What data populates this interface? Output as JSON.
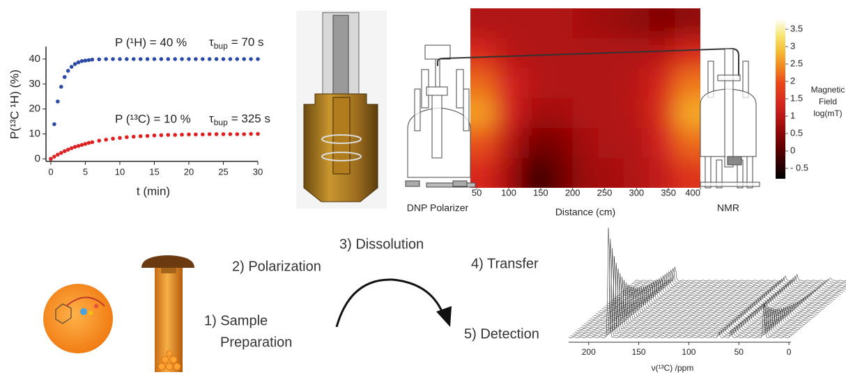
{
  "chart_data": [
    {
      "type": "scatter",
      "x_label": "t (min)",
      "y_label": "P(¹³C ¹H) (%)",
      "x": [
        0,
        0.5,
        1,
        1.5,
        2,
        2.5,
        3,
        3.5,
        4,
        4.5,
        5,
        5.5,
        6,
        7,
        8,
        9,
        10,
        11,
        12,
        13,
        14,
        15,
        16,
        17,
        18,
        19,
        20,
        21,
        22,
        23,
        24,
        25,
        26,
        27,
        28,
        29,
        30
      ],
      "series": [
        {
          "color": "#2b4aa8",
          "values": [
            0,
            13.9,
            23.0,
            28.9,
            32.8,
            35.3,
            36.9,
            38.0,
            38.7,
            39.2,
            39.4,
            39.6,
            39.8,
            39.9,
            40,
            40,
            40,
            40,
            40,
            40,
            40,
            40,
            40,
            40,
            40,
            40,
            40,
            40,
            40,
            40,
            40,
            40,
            40,
            40,
            40,
            40,
            40
          ]
        },
        {
          "color": "#e02020",
          "values": [
            0,
            0.9,
            1.7,
            2.4,
            3.1,
            3.7,
            4.3,
            4.8,
            5.2,
            5.6,
            6.0,
            6.4,
            6.7,
            7.3,
            7.7,
            8.1,
            8.4,
            8.7,
            8.9,
            9.1,
            9.2,
            9.4,
            9.5,
            9.6,
            9.6,
            9.7,
            9.8,
            9.8,
            9.8,
            9.9,
            9.9,
            9.9,
            9.9,
            9.9,
            9.9,
            10,
            10
          ]
        }
      ],
      "annotations": [
        {
          "text": "P (¹H) = 40 %",
          "tau": "τ",
          "subscript": "bup",
          "tau_text": "= 70 s"
        },
        {
          "text": "P (¹³C) = 10 %",
          "tau": "τ",
          "subscript": "bup",
          "tau_text": "= 325 s"
        }
      ],
      "xlim": [
        -0.7,
        30
      ],
      "ylim": [
        -1,
        45
      ],
      "xticks": [
        0,
        5,
        10,
        15,
        20,
        25,
        30
      ],
      "yticks": [
        0,
        10,
        20,
        30,
        40
      ]
    },
    {
      "type": "heatmap",
      "x_label": "Distance (cm)",
      "colorbar_label": [
        "Magnetic",
        "Field",
        "log(mT)"
      ],
      "x": [
        60,
        100,
        140,
        180,
        220,
        260,
        300,
        340,
        380
      ],
      "z": [
        [
          0.9,
          0.9,
          0.9,
          0.9,
          0.8,
          0.7,
          0.6,
          0.4,
          0.6
        ],
        [
          1.4,
          1.0,
          0.9,
          0.9,
          0.9,
          0.9,
          0.9,
          1.0,
          1.4
        ],
        [
          2.2,
          1.3,
          1.0,
          0.9,
          0.9,
          0.9,
          1.0,
          1.4,
          2.3
        ],
        [
          2.6,
          1.3,
          0.8,
          0.8,
          0.9,
          0.9,
          1.0,
          1.5,
          2.7
        ],
        [
          2.0,
          1.0,
          0.3,
          0.4,
          0.8,
          0.9,
          0.9,
          1.3,
          2.2
        ],
        [
          1.4,
          0.8,
          -0.3,
          0.2,
          0.7,
          0.8,
          0.9,
          1.1,
          1.6
        ]
      ],
      "xlim": [
        40,
        400
      ],
      "xticks": [
        50,
        100,
        150,
        200,
        250,
        300,
        350,
        400
      ],
      "zlim": [
        -0.8,
        3.8
      ],
      "zticks": [
        3.5,
        3,
        2.5,
        2,
        1.5,
        1,
        0.5,
        0,
        {
          "value": -0.5,
          "label": "- 0.5"
        }
      ],
      "left_label": "DNP Polarizer",
      "right_label": "NMR"
    },
    {
      "type": "waterfall",
      "x_label": "ν(¹³C) /ppm",
      "xlim": [
        220,
        -2
      ],
      "xticks": [
        200,
        150,
        100,
        50,
        0
      ]
    }
  ],
  "steps": [
    "1) Sample",
    "Preparation",
    "2) Polarization",
    "3) Dissolution",
    "4) Transfer",
    "5) Detection"
  ]
}
